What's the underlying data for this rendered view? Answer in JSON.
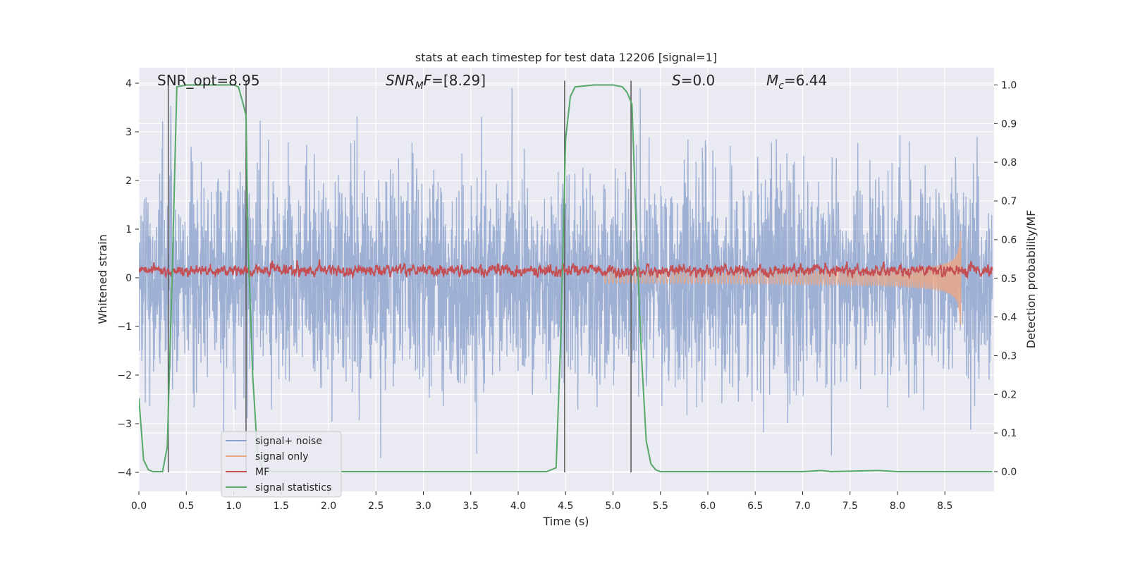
{
  "chart_data": {
    "type": "line",
    "title": "stats at each timestep for test data 12206 [signal=1]",
    "xlabel": "Time (s)",
    "ylabel": "Whitened strain",
    "y2label": "Detection probability/MF",
    "xlim": [
      0.0,
      9.0
    ],
    "ylim": [
      -4.4,
      4.3
    ],
    "y2lim": [
      -0.05,
      1.045
    ],
    "grid": true,
    "legend_position": "lower-left",
    "xticks": [
      "0.0",
      "0.5",
      "1.0",
      "1.5",
      "2.0",
      "2.5",
      "3.0",
      "3.5",
      "4.0",
      "4.5",
      "5.0",
      "5.5",
      "6.0",
      "6.5",
      "7.0",
      "7.5",
      "8.0",
      "8.5"
    ],
    "yticks": [
      "4",
      "3",
      "2",
      "1",
      "0",
      "−1",
      "−2",
      "−3",
      "−4"
    ],
    "y2ticks": [
      "1.0",
      "0.9",
      "0.8",
      "0.7",
      "0.6",
      "0.5",
      "0.4",
      "0.3",
      "0.2",
      "0.1",
      "0.0"
    ],
    "annotations": {
      "snr_opt": "SNR_opt=8.95",
      "snr_mf": "=[8.29]",
      "s": "=0.0",
      "mc": "=6.44"
    },
    "vertical_markers_s": [
      0.31,
      1.13,
      4.49,
      5.19
    ],
    "series": [
      {
        "name": "signal+ noise",
        "color": "#8da3cd",
        "description_kind": "noise",
        "amplitude_band": [
          -1.6,
          1.55
        ],
        "peak_range": [
          -4.0,
          3.9
        ]
      },
      {
        "name": "signal only",
        "color": "#e8a888",
        "description_kind": "chirp",
        "start_s": 4.9,
        "merger_s": 8.67,
        "peak_amplitude": [
          -1.2,
          1.0
        ]
      },
      {
        "name": "MF",
        "color": "#c44e52",
        "description_kind": "mf",
        "baseline": 0.15
      },
      {
        "name": "signal statistics",
        "color": "#55a868",
        "axis": "y2",
        "x": [
          0.0,
          0.05,
          0.1,
          0.15,
          0.2,
          0.25,
          0.3,
          0.35,
          0.4,
          0.5,
          0.6,
          0.8,
          1.0,
          1.05,
          1.1,
          1.13,
          1.15,
          1.2,
          1.25,
          1.3,
          1.4,
          2.0,
          3.0,
          4.0,
          4.3,
          4.4,
          4.45,
          4.5,
          4.55,
          4.6,
          4.8,
          5.0,
          5.1,
          5.15,
          5.2,
          5.25,
          5.3,
          5.35,
          5.4,
          5.45,
          5.5,
          6.0,
          7.0,
          7.2,
          7.3,
          7.8,
          8.0,
          8.67,
          9.0
        ],
        "y": [
          0.19,
          0.03,
          0.005,
          0.0,
          0.0,
          0.0,
          0.065,
          0.5,
          0.995,
          1.0,
          1.0,
          1.0,
          1.0,
          0.995,
          0.95,
          0.92,
          0.6,
          0.25,
          0.05,
          0.01,
          0.0,
          0.0,
          0.0,
          0.0,
          0.0,
          0.01,
          0.35,
          0.86,
          0.97,
          0.995,
          1.0,
          1.0,
          0.995,
          0.98,
          0.95,
          0.6,
          0.3,
          0.08,
          0.02,
          0.005,
          0.0,
          0.0,
          0.0,
          0.003,
          0.0,
          0.003,
          0.0,
          0.0,
          0.0
        ]
      }
    ]
  }
}
